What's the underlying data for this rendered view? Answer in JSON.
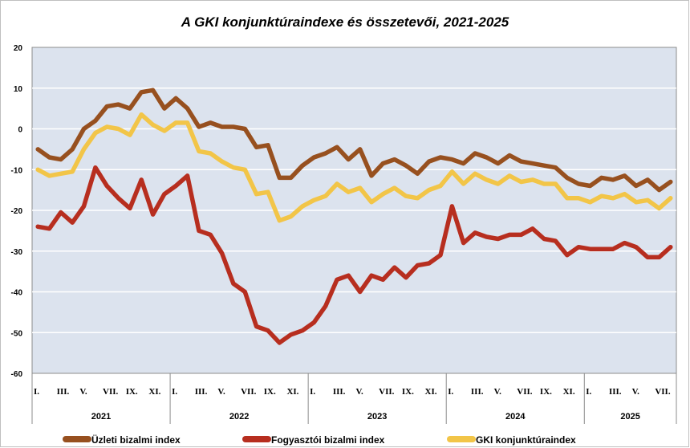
{
  "chart_data": {
    "type": "line",
    "title": "A GKI konjunktúraindexe és összetevői, 2021-2025",
    "ylim": [
      -60,
      20
    ],
    "yticks": [
      20,
      10,
      0,
      -10,
      -20,
      -30,
      -40,
      -50,
      -60
    ],
    "grid": true,
    "legend_position": "bottom",
    "month_labels": [
      "I.",
      "III.",
      "V.",
      "VII.",
      "IX.",
      "XI."
    ],
    "month_positions": [
      0,
      2,
      4,
      6,
      8,
      10
    ],
    "years": [
      {
        "label": "2021",
        "months": 12
      },
      {
        "label": "2022",
        "months": 12
      },
      {
        "label": "2023",
        "months": 12
      },
      {
        "label": "2024",
        "months": 12
      },
      {
        "label": "2025",
        "months": 8
      }
    ],
    "series": [
      {
        "name": "Üzleti bizalmi index",
        "color": "#97501F",
        "values": [
          -5,
          -7,
          -7.5,
          -5,
          0,
          2,
          5.5,
          6,
          5,
          9,
          9.5,
          5,
          7.5,
          5,
          0.5,
          1.5,
          0.5,
          0.5,
          0,
          -4.5,
          -4,
          -12,
          -12,
          -9,
          -7,
          -6,
          -4.5,
          -7.5,
          -5,
          -11.5,
          -8.5,
          -7.5,
          -9,
          -11,
          -8,
          -7,
          -7.5,
          -8.5,
          -6,
          -7,
          -8.5,
          -6.5,
          -8,
          -8.5,
          -9,
          -9.5,
          -12,
          -13.5,
          -14,
          -12,
          -12.5,
          -11.5,
          -14,
          -12.5,
          -15,
          -13
        ]
      },
      {
        "name": "Fogyasztói bizalmi index",
        "color": "#B72E1F",
        "values": [
          -24,
          -24.5,
          -20.5,
          -23,
          -19,
          -9.5,
          -14,
          -17,
          -19.5,
          -12.5,
          -21,
          -16,
          -14,
          -11.5,
          -25,
          -26,
          -30.5,
          -38,
          -40,
          -48.5,
          -49.5,
          -52.5,
          -50.5,
          -49.5,
          -47.5,
          -43.5,
          -37,
          -36,
          -40,
          -36,
          -37,
          -34,
          -36.5,
          -33.5,
          -33,
          -31,
          -19,
          -28,
          -25.5,
          -26.5,
          -27,
          -26,
          -26,
          -24.5,
          -27,
          -27.5,
          -31,
          -29,
          -29.5,
          -29.5,
          -29.5,
          -28,
          -29,
          -31.5,
          -31.5,
          -29
        ]
      },
      {
        "name": "GKI konjunktúraindex",
        "color": "#F2C548",
        "values": [
          -10,
          -11.5,
          -11,
          -10.5,
          -5,
          -1,
          0.5,
          0,
          -1.5,
          3.5,
          1,
          -0.5,
          1.5,
          1.5,
          -5.5,
          -6,
          -8,
          -9.5,
          -10,
          -16,
          -15.5,
          -22.5,
          -21.5,
          -19,
          -17.5,
          -16.5,
          -13.5,
          -15.5,
          -14.5,
          -18,
          -16,
          -14.5,
          -16.5,
          -17,
          -15,
          -14,
          -10.5,
          -13.5,
          -11,
          -12.5,
          -13.5,
          -11.5,
          -13,
          -12.5,
          -13.5,
          -13.5,
          -17,
          -17,
          -18,
          -16.5,
          -17,
          -16,
          -18,
          -17.5,
          -19.5,
          -17
        ]
      }
    ]
  },
  "legend": {
    "items": [
      {
        "label": "Üzleti bizalmi index",
        "color": "#97501F"
      },
      {
        "label": "Fogyasztói bizalmi index",
        "color": "#B72E1F"
      },
      {
        "label": "GKI konjunktúraindex",
        "color": "#F2C548"
      }
    ]
  }
}
